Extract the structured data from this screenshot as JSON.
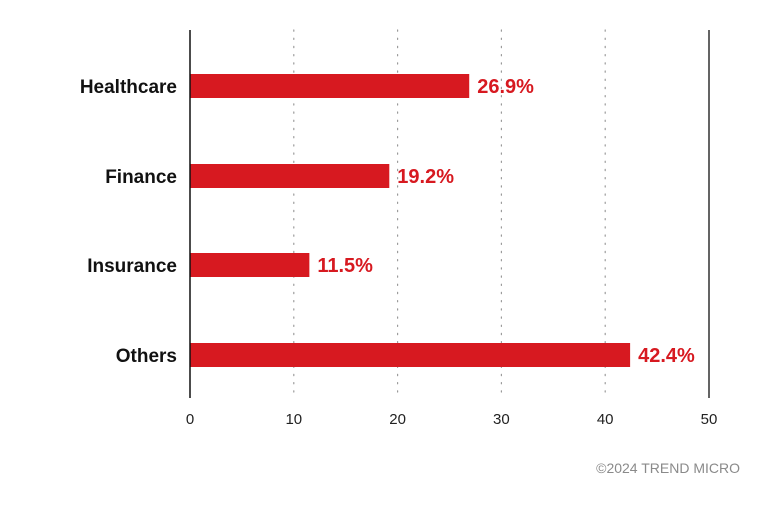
{
  "chart_data": {
    "type": "bar",
    "orientation": "horizontal",
    "categories": [
      "Healthcare",
      "Finance",
      "Insurance",
      "Others"
    ],
    "values": [
      26.9,
      19.2,
      11.5,
      42.4
    ],
    "data_labels": [
      "26.9%",
      "19.2%",
      "11.5%",
      "42.4%"
    ],
    "xlim": [
      0,
      50
    ],
    "xticks": [
      0,
      10,
      20,
      30,
      40,
      50
    ],
    "grid": "vertical dotted",
    "title": "",
    "xlabel": "",
    "ylabel": ""
  },
  "colors": {
    "bar": "#d71920",
    "data_label": "#d71920",
    "axis": "#111111",
    "grid": "#9a9a9a"
  },
  "footer": {
    "credit": "©2024 TREND MICRO"
  }
}
